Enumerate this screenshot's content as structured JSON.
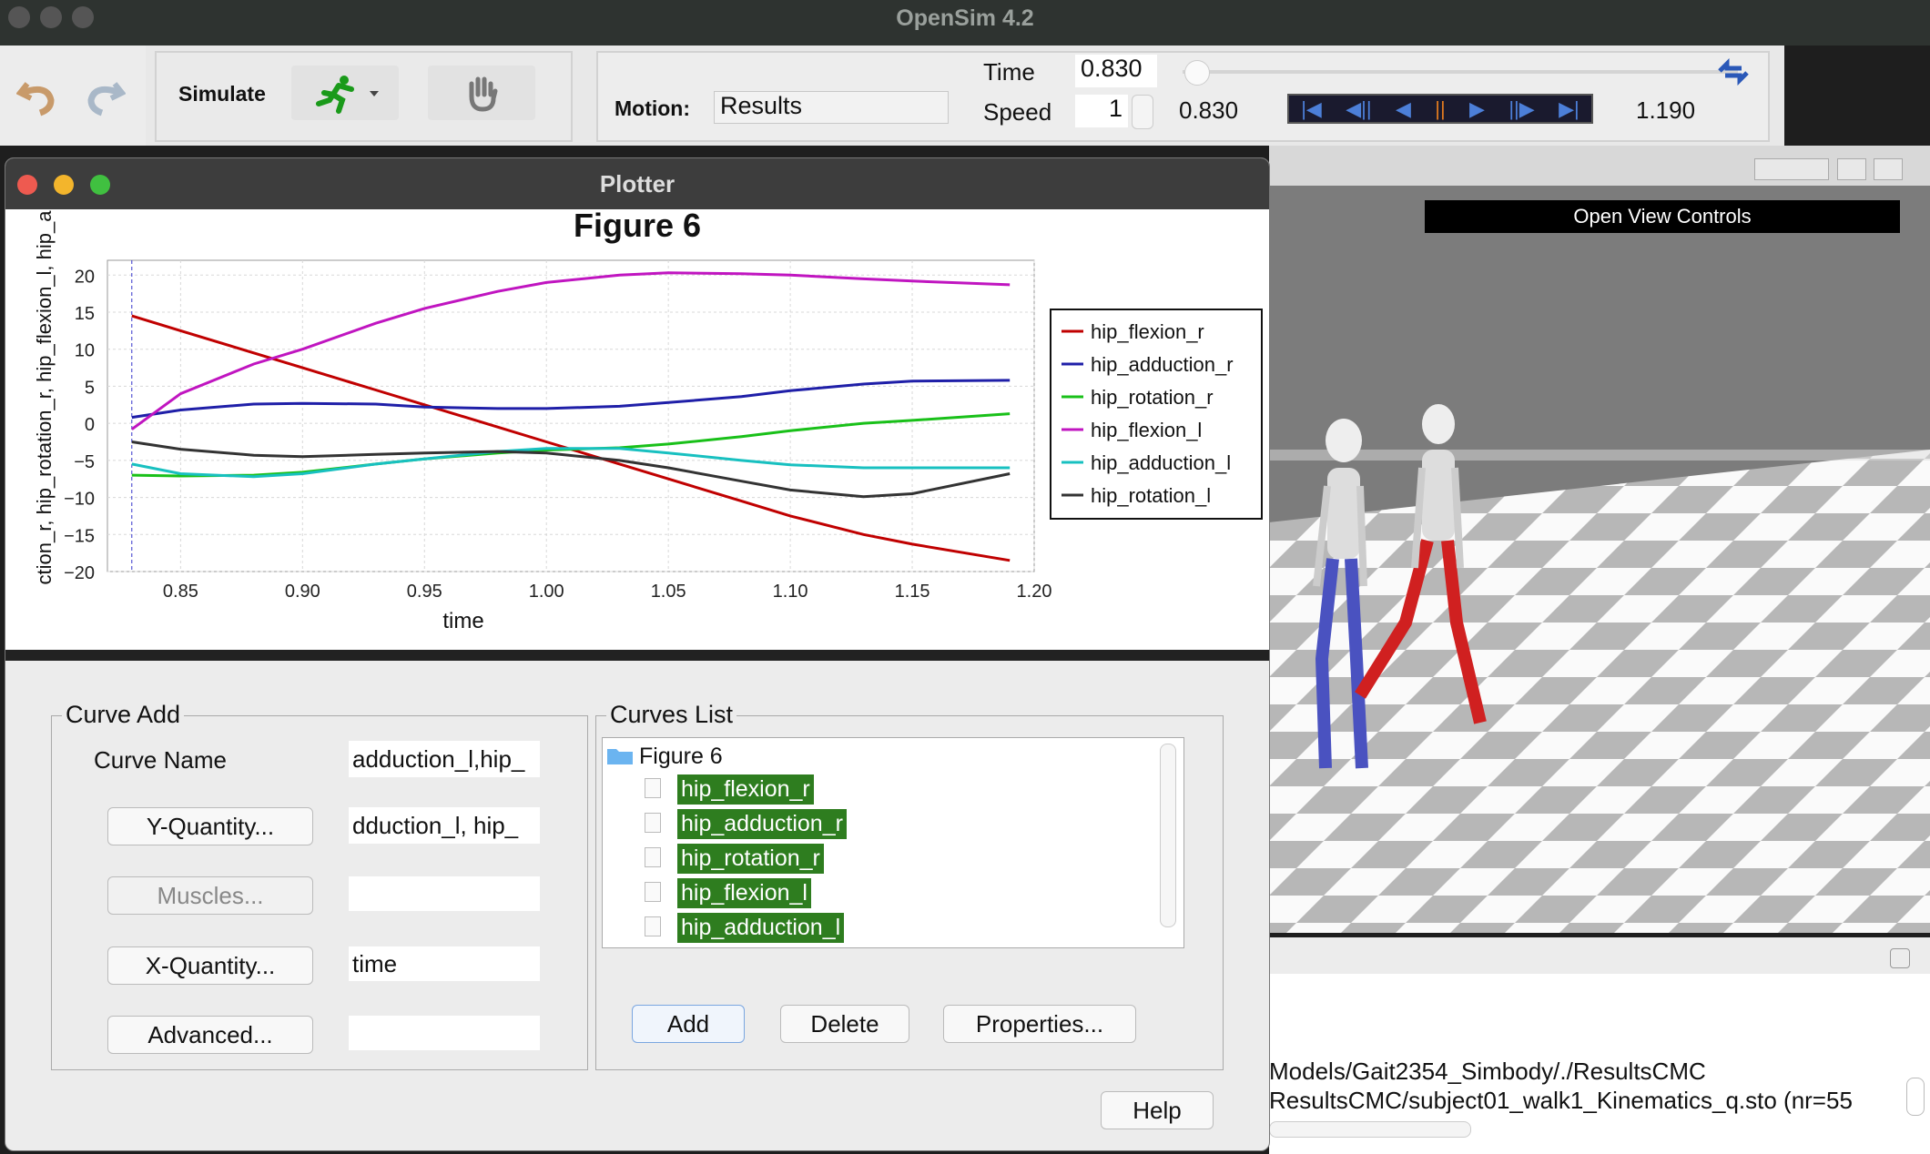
{
  "app_title": "OpenSim 4.2",
  "toolbar": {
    "simulate_label": "Simulate",
    "motion_label": "Motion:",
    "motion_value": "Results",
    "time_label": "Time",
    "time_value": "0.830",
    "speed_label": "Speed",
    "speed_value": "1",
    "current_time": "0.830",
    "end_time": "1.190",
    "time_progress": 0.0
  },
  "plotter": {
    "window_title": "Plotter",
    "figure_title": "Figure 6",
    "ylabel_visible": "ction_r, hip_rotation_r, hip_flexion_l, hip_a",
    "xlabel": "time",
    "curve_add": {
      "group_title": "Curve Add",
      "curve_name_label": "Curve Name",
      "curve_name_value": "adduction_l,hip_",
      "y_quantity_button": "Y-Quantity...",
      "y_quantity_value": "dduction_l, hip_",
      "muscles_button": "Muscles...",
      "muscles_value": "",
      "x_quantity_button": "X-Quantity...",
      "x_quantity_value": "time",
      "advanced_button": "Advanced...",
      "advanced_value": ""
    },
    "curves_list": {
      "group_title": "Curves List",
      "folder": "Figure 6",
      "items": [
        "hip_flexion_r",
        "hip_adduction_r",
        "hip_rotation_r",
        "hip_flexion_l",
        "hip_adduction_l"
      ]
    },
    "buttons": {
      "add": "Add",
      "delete": "Delete",
      "properties": "Properties...",
      "help": "Help"
    }
  },
  "view3d": {
    "open_view_controls": "Open View Controls"
  },
  "console": {
    "line1": "Models/Gait2354_Simbody/./ResultsCMC",
    "line2": "ResultsCMC/subject01_walk1_Kinematics_q.sto (nr=55"
  },
  "chart_data": {
    "type": "line",
    "title": "Figure 6",
    "xlabel": "time",
    "ylabel": "ction_r, hip_rotation_r, hip_flexion_l, hip_a",
    "xlim": [
      0.82,
      1.2
    ],
    "ylim": [
      -20,
      22
    ],
    "xticks": [
      "0.85",
      "0.90",
      "0.95",
      "1.00",
      "1.05",
      "1.10",
      "1.15",
      "1.20"
    ],
    "yticks": [
      "20",
      "15",
      "10",
      "5",
      "0",
      "−5",
      "−10",
      "−15",
      "−20"
    ],
    "grid": true,
    "legend_position": "right",
    "cursor_x": 0.83,
    "x": [
      0.83,
      0.85,
      0.88,
      0.9,
      0.93,
      0.95,
      0.98,
      1.0,
      1.03,
      1.05,
      1.08,
      1.1,
      1.13,
      1.15,
      1.19
    ],
    "series": [
      {
        "name": "hip_flexion_r",
        "color": "#c00000",
        "values": [
          14.5,
          12.5,
          9.5,
          7.5,
          4.5,
          2.5,
          -0.5,
          -2.5,
          -5.5,
          -7.5,
          -10.5,
          -12.5,
          -15,
          -16.3,
          -18.5
        ]
      },
      {
        "name": "hip_adduction_r",
        "color": "#1f1fa8",
        "values": [
          0.8,
          1.8,
          2.6,
          2.7,
          2.6,
          2.2,
          2.0,
          2.0,
          2.3,
          2.8,
          3.6,
          4.4,
          5.3,
          5.7,
          5.8
        ]
      },
      {
        "name": "hip_rotation_r",
        "color": "#19c019",
        "values": [
          -7.0,
          -7.1,
          -7.0,
          -6.6,
          -5.5,
          -4.8,
          -4.0,
          -3.6,
          -3.3,
          -2.8,
          -1.8,
          -1.0,
          0.0,
          0.4,
          1.3
        ]
      },
      {
        "name": "hip_flexion_l",
        "color": "#c015c0",
        "values": [
          -0.8,
          4.0,
          8.0,
          10.0,
          13.5,
          15.5,
          17.8,
          19.0,
          20.0,
          20.3,
          20.2,
          20.0,
          19.5,
          19.2,
          18.7
        ]
      },
      {
        "name": "hip_adduction_l",
        "color": "#18c0c0",
        "values": [
          -5.5,
          -6.8,
          -7.2,
          -6.8,
          -5.5,
          -4.8,
          -3.8,
          -3.4,
          -3.4,
          -4.0,
          -5.0,
          -5.6,
          -6.0,
          -6.0,
          -6.0
        ]
      },
      {
        "name": "hip_rotation_l",
        "color": "#333333",
        "values": [
          -2.5,
          -3.5,
          -4.3,
          -4.5,
          -4.2,
          -4.0,
          -3.8,
          -4.0,
          -5.0,
          -6.0,
          -7.8,
          -9.0,
          -9.9,
          -9.5,
          -6.8
        ]
      }
    ]
  }
}
